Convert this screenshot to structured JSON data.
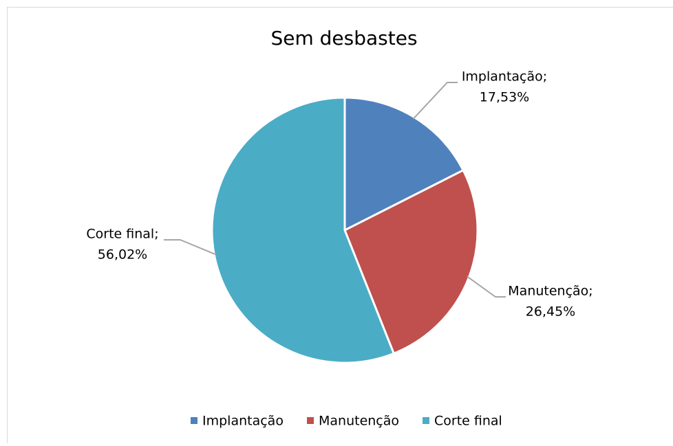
{
  "chart_data": {
    "type": "pie",
    "title": "Sem desbastes",
    "categories": [
      "Implantação",
      "Manutenção",
      "Corte final"
    ],
    "values": [
      17.53,
      26.45,
      56.02
    ],
    "label_names": [
      "Implantação;",
      "Manutenção;",
      "Corte final;"
    ],
    "value_labels": [
      "17,53%",
      "26,45%",
      "56,02%"
    ],
    "colors": [
      "#4f81bd",
      "#c0504d",
      "#4bacc6"
    ],
    "legend": "bottom"
  }
}
